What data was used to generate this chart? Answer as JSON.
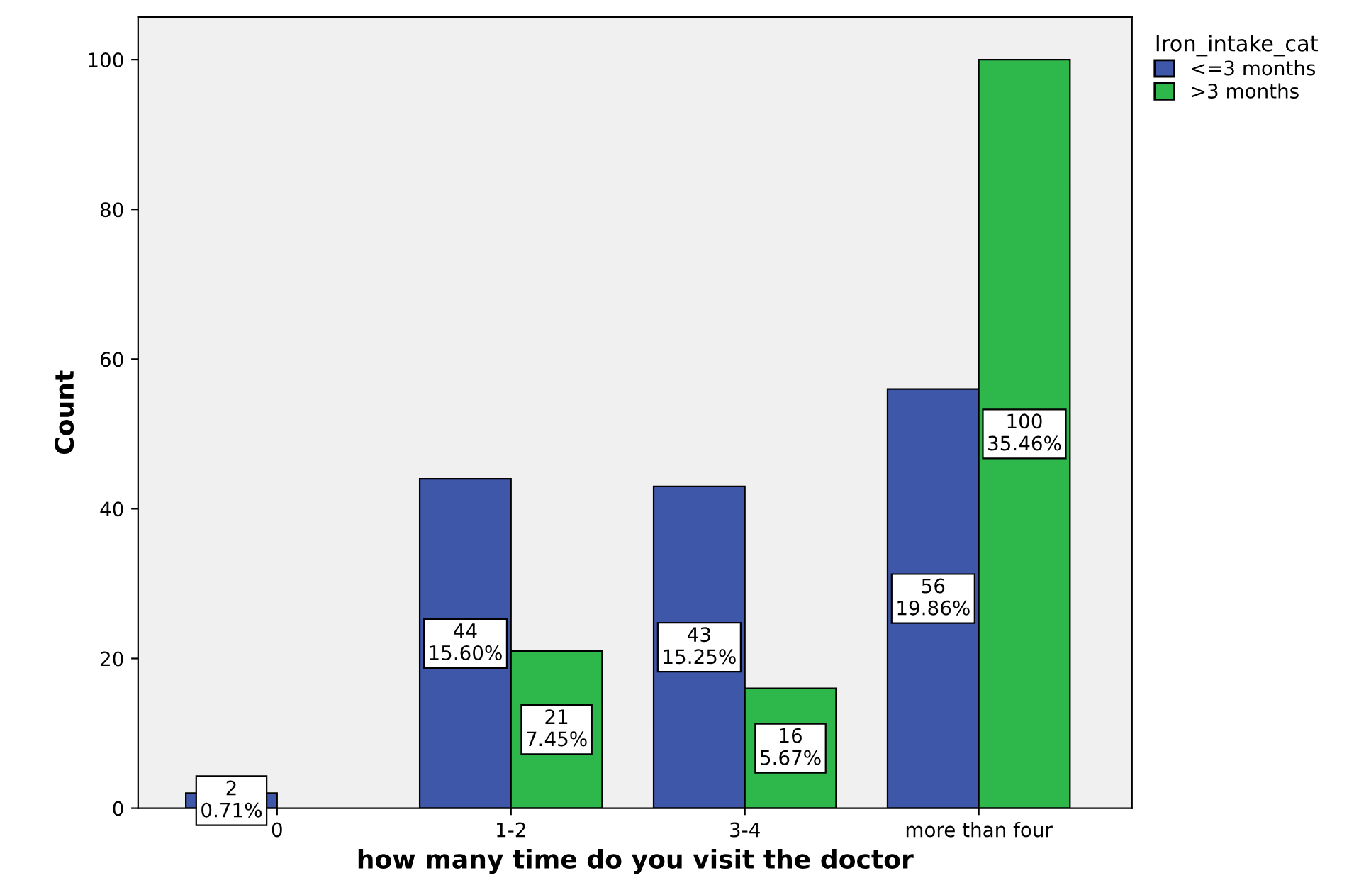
{
  "chart_data": {
    "type": "bar",
    "xlabel": "how many time do you visit the doctor",
    "ylabel": "Count",
    "legend_title": "Iron_intake_cat",
    "categories": [
      "0",
      "1-2",
      "3-4",
      "more than four"
    ],
    "series": [
      {
        "name": "<=3 months",
        "color": "#3e57a8",
        "values": [
          2,
          44,
          43,
          56
        ],
        "value_labels": [
          "2\n0.71%",
          "44\n15.60%",
          "43\n15.25%",
          "56\n19.86%"
        ]
      },
      {
        "name": ">3 months",
        "color": "#2eb84b",
        "values": [
          null,
          21,
          16,
          100
        ],
        "value_labels": [
          null,
          "21\n7.45%",
          "16\n5.67%",
          "100\n35.46%"
        ]
      }
    ],
    "ylim": [
      0,
      105.7
    ],
    "yticks": [
      0,
      20,
      40,
      60,
      80,
      100
    ],
    "grid": false,
    "legend": "top right"
  }
}
